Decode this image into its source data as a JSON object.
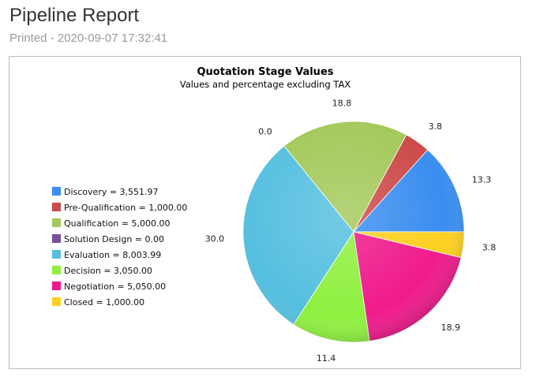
{
  "page": {
    "title": "Pipeline Report",
    "printed": "Printed - 2020-09-07 17:32:41"
  },
  "chart_data": {
    "type": "pie",
    "title": "Quotation Stage Values",
    "subtitle": "Values and percentage excluding TAX",
    "legend_position": "left",
    "start_angle_deg": 0,
    "categories": [
      "Discovery",
      "Pre-Qualification",
      "Qualification",
      "Solution Design",
      "Evaluation",
      "Decision",
      "Negotiation",
      "Closed"
    ],
    "legend_labels": [
      "Discovery = 3,551.97",
      "Pre-Qualification = 1,000.00",
      "Qualification = 5,000.00",
      "Solution Design = 0.00",
      "Evaluation = 8,003.99",
      "Decision = 3,050.00",
      "Negotiation = 5,050.00",
      "Closed = 1,000.00"
    ],
    "values": [
      3551.97,
      1000.0,
      5000.0,
      0.0,
      8003.99,
      3050.0,
      5050.0,
      1000.0
    ],
    "percentages": [
      "13.3",
      "3.8",
      "18.8",
      "0.0",
      "30.0",
      "11.4",
      "18.9",
      "3.8"
    ],
    "colors": [
      "#3a8ef0",
      "#cd4a4a",
      "#a4c95a",
      "#7a4f9a",
      "#55bfdf",
      "#8ff040",
      "#f01a8c",
      "#fdd020"
    ]
  }
}
